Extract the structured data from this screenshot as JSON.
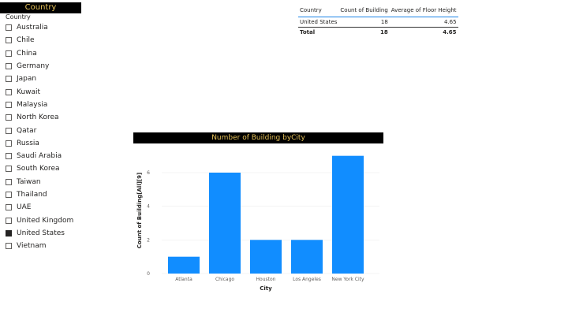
{
  "slicer": {
    "banner": "Country",
    "header": "Country",
    "items": [
      {
        "label": "Australia",
        "checked": false
      },
      {
        "label": "Chile",
        "checked": false
      },
      {
        "label": "China",
        "checked": false
      },
      {
        "label": "Germany",
        "checked": false
      },
      {
        "label": "Japan",
        "checked": false
      },
      {
        "label": "Kuwait",
        "checked": false
      },
      {
        "label": "Malaysia",
        "checked": false
      },
      {
        "label": "North Korea",
        "checked": false
      },
      {
        "label": "Qatar",
        "checked": false
      },
      {
        "label": "Russia",
        "checked": false
      },
      {
        "label": "Saudi Arabia",
        "checked": false
      },
      {
        "label": "South Korea",
        "checked": false
      },
      {
        "label": "Taiwan",
        "checked": false
      },
      {
        "label": "Thailand",
        "checked": false
      },
      {
        "label": "UAE",
        "checked": false
      },
      {
        "label": "United Kingdom",
        "checked": false
      },
      {
        "label": "United States",
        "checked": true
      },
      {
        "label": "Vietnam",
        "checked": false
      }
    ]
  },
  "table": {
    "headers": [
      "Country",
      "Count of Building",
      "Average of Floor Height"
    ],
    "rows": [
      [
        "United States",
        "18",
        "4.65"
      ]
    ],
    "total": [
      "Total",
      "18",
      "4.65"
    ]
  },
  "chart_data": {
    "type": "bar",
    "title": "Number of Building byCity",
    "xlabel": "City",
    "ylabel": "Count of Building[All][9]",
    "categories": [
      "Atlanta",
      "Chicago",
      "Houston",
      "Los Angeles",
      "New York City"
    ],
    "values": [
      1,
      6,
      2,
      2,
      7
    ],
    "yticks": [
      0,
      2,
      4,
      6
    ],
    "ylim": [
      0,
      7.5
    ],
    "bar_color": "#118dff",
    "grid": true
  },
  "colors": {
    "banner_bg": "#000000",
    "banner_text": "#e6c25a",
    "accent": "#1b84e7"
  }
}
